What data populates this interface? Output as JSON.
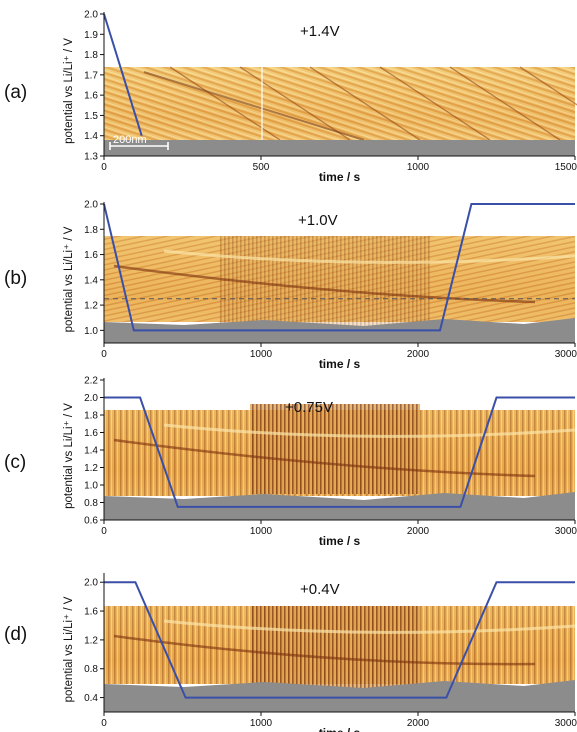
{
  "chart_data": [
    {
      "type": "line",
      "panel_label": "(a)",
      "annotation": "+1.4V",
      "ylabel": "potential vs Li/Li⁺ / V",
      "xlabel": "time / s",
      "ylim": [
        1.3,
        2.0
      ],
      "yticks": [
        "1.3",
        "1.4",
        "1.5",
        "1.6",
        "1.7",
        "1.8",
        "1.9",
        "2.0"
      ],
      "xlim": [
        0,
        1500
      ],
      "xticks": [
        "0",
        "500",
        "1000",
        "1500"
      ],
      "scale_bar": "200nm",
      "series": [
        {
          "x": [
            0,
            120
          ],
          "y": [
            2.0,
            1.4
          ]
        }
      ]
    },
    {
      "type": "line",
      "panel_label": "(b)",
      "annotation": "+1.0V",
      "ylabel": "potential vs Li/Li⁺ / V",
      "xlabel": "time / s",
      "ylim": [
        0.9,
        2.0
      ],
      "yticks": [
        "1.0",
        "1.2",
        "1.4",
        "1.6",
        "1.8",
        "2.0"
      ],
      "xlim": [
        0,
        3000
      ],
      "xticks": [
        "0",
        "1000",
        "2000",
        "3000"
      ],
      "reference_line": 1.25,
      "series": [
        {
          "x": [
            0,
            190,
            2140,
            2340,
            3000
          ],
          "y": [
            2.0,
            1.0,
            1.0,
            2.0,
            2.0
          ]
        }
      ]
    },
    {
      "type": "line",
      "panel_label": "(c)",
      "annotation": "+0.75V",
      "ylabel": "potential vs Li/Li⁺ / V",
      "xlabel": "time / s",
      "ylim": [
        0.6,
        2.2
      ],
      "yticks": [
        "0.6",
        "0.8",
        "1.0",
        "1.2",
        "1.4",
        "1.6",
        "1.8",
        "2.0",
        "2.2"
      ],
      "xlim": [
        0,
        3000
      ],
      "xticks": [
        "0",
        "1000",
        "2000",
        "3000"
      ],
      "series": [
        {
          "x": [
            0,
            230,
            470,
            2270,
            2500,
            3000
          ],
          "y": [
            2.0,
            2.0,
            0.75,
            0.75,
            2.0,
            2.0
          ]
        }
      ]
    },
    {
      "type": "line",
      "panel_label": "(d)",
      "annotation": "+0.4V",
      "ylabel": "potential vs Li/Li⁺ / V",
      "xlabel": "time / s",
      "ylim": [
        0.2,
        2.1
      ],
      "yticks": [
        "0.4",
        "0.8",
        "1.2",
        "1.6",
        "2.0"
      ],
      "xlim": [
        0,
        3000
      ],
      "xticks": [
        "0",
        "1000",
        "2000",
        "3000"
      ],
      "series": [
        {
          "x": [
            0,
            200,
            520,
            2180,
            2500,
            3000
          ],
          "y": [
            2.0,
            2.0,
            0.4,
            0.4,
            2.0,
            2.0
          ]
        }
      ]
    }
  ],
  "colors": {
    "map_light": "#f3cf7a",
    "map_mid": "#e6a84a",
    "map_dark": "#b9601f",
    "map_deep": "#7a2e0c",
    "substrate": "#8c8c8c",
    "potential_line": "#3a4fa8",
    "reference_line": "#555555"
  }
}
